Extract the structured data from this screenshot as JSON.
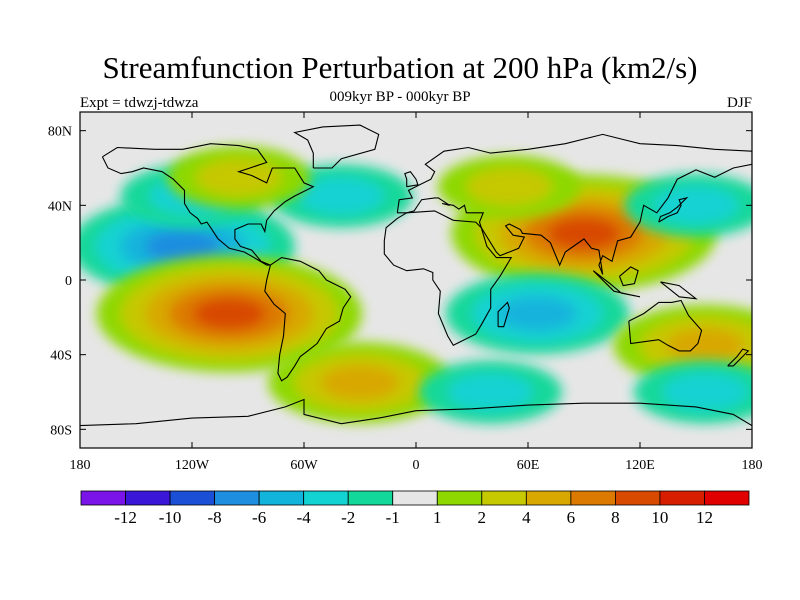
{
  "title": "Streamfunction Perturbation at 200 hPa (km2/s)",
  "subtitle": "009kyr BP - 000kyr BP",
  "left_label": "Expt = tdwzj-tdwza",
  "right_label": "DJF",
  "colors": {
    "background": "#e6e6e6",
    "land_outline": "#000000",
    "palette": [
      "#7a14e8",
      "#3a16d8",
      "#1a4fd6",
      "#1e8ee0",
      "#12b4dc",
      "#12d2d2",
      "#12d89a",
      "#e6e6e6",
      "#8ed800",
      "#c6c800",
      "#d8a800",
      "#dc7a00",
      "#d84a00",
      "#d81e00",
      "#e00000"
    ]
  },
  "chart_data": {
    "type": "filled-contour map",
    "variable": "200 hPa streamfunction perturbation",
    "units": "km2/s",
    "x_ticks": [
      "180",
      "120W",
      "60W",
      "0",
      "60E",
      "120E",
      "180"
    ],
    "y_ticks": [
      "80N",
      "40N",
      "0",
      "40S",
      "80S"
    ],
    "xlim": [
      -180,
      180
    ],
    "ylim": [
      -90,
      90
    ],
    "colorbar_levels": [
      "-12",
      "-10",
      "-8",
      "-6",
      "-4",
      "-2",
      "-1",
      "1",
      "2",
      "4",
      "6",
      "8",
      "10",
      "12"
    ],
    "anomaly_centers": [
      {
        "lon": -125,
        "lat": 18,
        "sign": "negative",
        "peak": -6
      },
      {
        "lon": -100,
        "lat": -18,
        "sign": "positive",
        "peak": 8
      },
      {
        "lon": 90,
        "lat": 25,
        "sign": "positive",
        "peak": 8
      },
      {
        "lon": 65,
        "lat": -18,
        "sign": "negative",
        "peak": -4
      },
      {
        "lon": -40,
        "lat": 45,
        "sign": "negative",
        "peak": -2
      },
      {
        "lon": -120,
        "lat": 45,
        "sign": "negative",
        "peak": -2
      },
      {
        "lon": 150,
        "lat": 40,
        "sign": "negative",
        "peak": -2
      },
      {
        "lon": -30,
        "lat": -55,
        "sign": "positive",
        "peak": 4
      },
      {
        "lon": 155,
        "lat": -35,
        "sign": "positive",
        "peak": 4
      },
      {
        "lon": -95,
        "lat": 55,
        "sign": "positive",
        "peak": 2
      },
      {
        "lon": 50,
        "lat": 50,
        "sign": "positive",
        "peak": 2
      },
      {
        "lon": 40,
        "lat": -60,
        "sign": "negative",
        "peak": -2
      },
      {
        "lon": 155,
        "lat": -60,
        "sign": "negative",
        "peak": -2
      }
    ]
  }
}
